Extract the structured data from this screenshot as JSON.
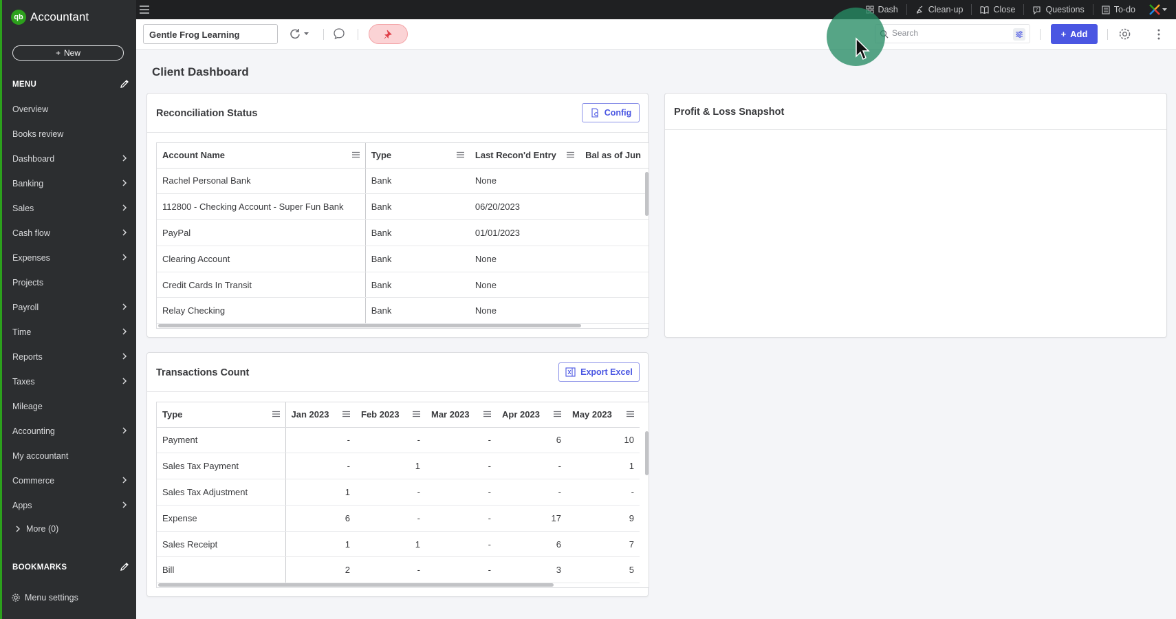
{
  "app": {
    "logo_badge": "qb",
    "title": "Accountant"
  },
  "sidebar": {
    "new_label": "New",
    "menu_label": "MENU",
    "items": [
      {
        "label": "Overview",
        "has_children": false
      },
      {
        "label": "Books review",
        "has_children": false
      },
      {
        "label": "Dashboard",
        "has_children": true
      },
      {
        "label": "Banking",
        "has_children": true
      },
      {
        "label": "Sales",
        "has_children": true
      },
      {
        "label": "Cash flow",
        "has_children": true
      },
      {
        "label": "Expenses",
        "has_children": true
      },
      {
        "label": "Projects",
        "has_children": false
      },
      {
        "label": "Payroll",
        "has_children": true
      },
      {
        "label": "Time",
        "has_children": true
      },
      {
        "label": "Reports",
        "has_children": true
      },
      {
        "label": "Taxes",
        "has_children": true
      },
      {
        "label": "Mileage",
        "has_children": false
      },
      {
        "label": "Accounting",
        "has_children": true
      },
      {
        "label": "My accountant",
        "has_children": false
      },
      {
        "label": "Commerce",
        "has_children": true
      },
      {
        "label": "Apps",
        "has_children": true
      }
    ],
    "more_label": "More (0)",
    "bookmarks_label": "BOOKMARKS",
    "menu_settings_label": "Menu settings"
  },
  "topbar": {
    "links": [
      {
        "label": "Dash",
        "icon": "grid-icon"
      },
      {
        "label": "Clean-up",
        "icon": "broom-icon"
      },
      {
        "label": "Close",
        "icon": "book-icon"
      },
      {
        "label": "Questions",
        "icon": "question-bubble-icon"
      },
      {
        "label": "To-do",
        "icon": "checklist-icon"
      }
    ]
  },
  "toolbar": {
    "client_name": "Gentle Frog Learning",
    "search_placeholder": "Search",
    "add_label": "Add"
  },
  "page": {
    "title": "Client Dashboard"
  },
  "reconciliation": {
    "title": "Reconciliation Status",
    "config_label": "Config",
    "columns": [
      "Account Name",
      "Type",
      "Last Recon'd Entry",
      "Bal as of Jun"
    ],
    "rows": [
      [
        "Rachel Personal Bank",
        "Bank",
        "None"
      ],
      [
        "112800 - Checking Account - Super Fun Bank",
        "Bank",
        "06/20/2023"
      ],
      [
        "PayPal",
        "Bank",
        "01/01/2023"
      ],
      [
        "Clearing Account",
        "Bank",
        "None"
      ],
      [
        "Credit Cards In Transit",
        "Bank",
        "None"
      ],
      [
        "Relay Checking",
        "Bank",
        "None"
      ]
    ]
  },
  "profit_loss": {
    "title": "Profit & Loss Snapshot"
  },
  "transactions": {
    "title": "Transactions Count",
    "export_label": "Export Excel",
    "columns": [
      "Type",
      "Jan 2023",
      "Feb 2023",
      "Mar 2023",
      "Apr 2023",
      "May 2023"
    ],
    "rows": [
      [
        "Payment",
        "-",
        "-",
        "-",
        "6",
        "10"
      ],
      [
        "Sales Tax Payment",
        "-",
        "1",
        "-",
        "-",
        "1"
      ],
      [
        "Sales Tax Adjustment",
        "1",
        "-",
        "-",
        "-",
        "-"
      ],
      [
        "Expense",
        "6",
        "-",
        "-",
        "17",
        "9"
      ],
      [
        "Sales Receipt",
        "1",
        "1",
        "-",
        "6",
        "7"
      ],
      [
        "Bill",
        "2",
        "-",
        "-",
        "3",
        "5"
      ]
    ]
  },
  "colors": {
    "brand_green": "#2ca01c",
    "accent_blue": "#4a56e2",
    "sidebar_bg": "#2c2e30"
  }
}
